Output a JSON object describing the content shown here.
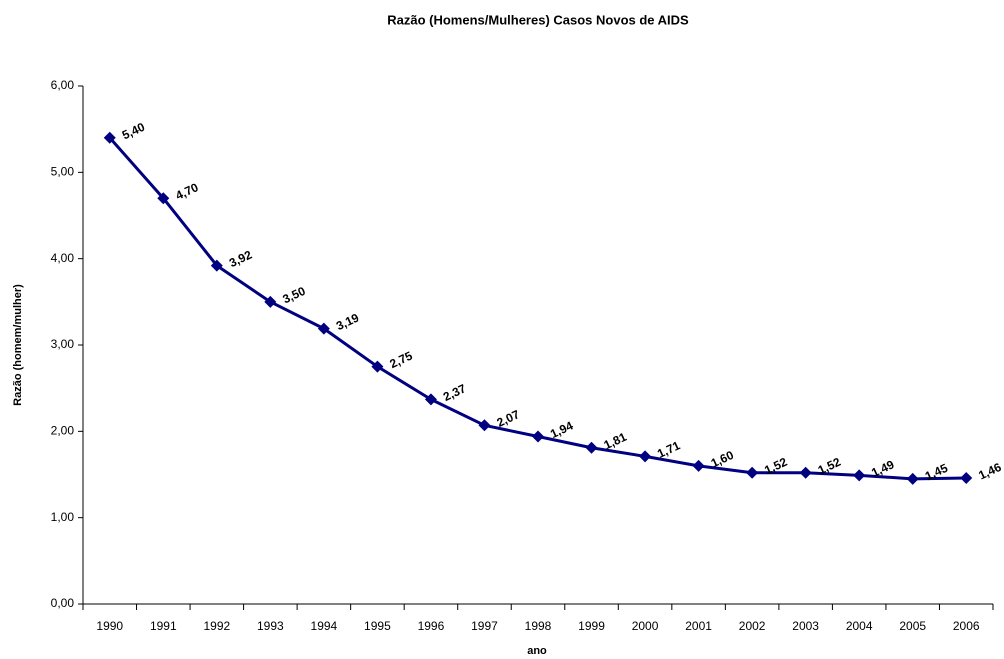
{
  "chart_data": {
    "type": "line",
    "title": "Razão (Homens/Mulheres) Casos Novos de AIDS",
    "x_label": "ano",
    "y_label": "Razão (homem/mulher)",
    "categories": [
      "1990",
      "1991",
      "1992",
      "1993",
      "1994",
      "1995",
      "1996",
      "1997",
      "1998",
      "1999",
      "2000",
      "2001",
      "2002",
      "2003",
      "2004",
      "2005",
      "2006"
    ],
    "values": [
      5.4,
      4.7,
      3.92,
      3.5,
      3.19,
      2.75,
      2.37,
      2.07,
      1.94,
      1.81,
      1.71,
      1.6,
      1.52,
      1.52,
      1.49,
      1.45,
      1.46
    ],
    "value_labels": [
      "5,40",
      "4,70",
      "3,92",
      "3,50",
      "3,19",
      "2,75",
      "2,37",
      "2,07",
      "1,94",
      "1,81",
      "1,71",
      "1,60",
      "1,52",
      "1,52",
      "1,49",
      "1,45",
      "1,46"
    ],
    "color": "#000080",
    "ylim": [
      0,
      6
    ],
    "yticks": [
      {
        "value": 0,
        "label": "0,00"
      },
      {
        "value": 1,
        "label": "1,00"
      },
      {
        "value": 2,
        "label": "2,00"
      },
      {
        "value": 3,
        "label": "3,00"
      },
      {
        "value": 4,
        "label": "4,00"
      },
      {
        "value": 5,
        "label": "5,00"
      },
      {
        "value": 6,
        "label": "6,00"
      }
    ]
  }
}
